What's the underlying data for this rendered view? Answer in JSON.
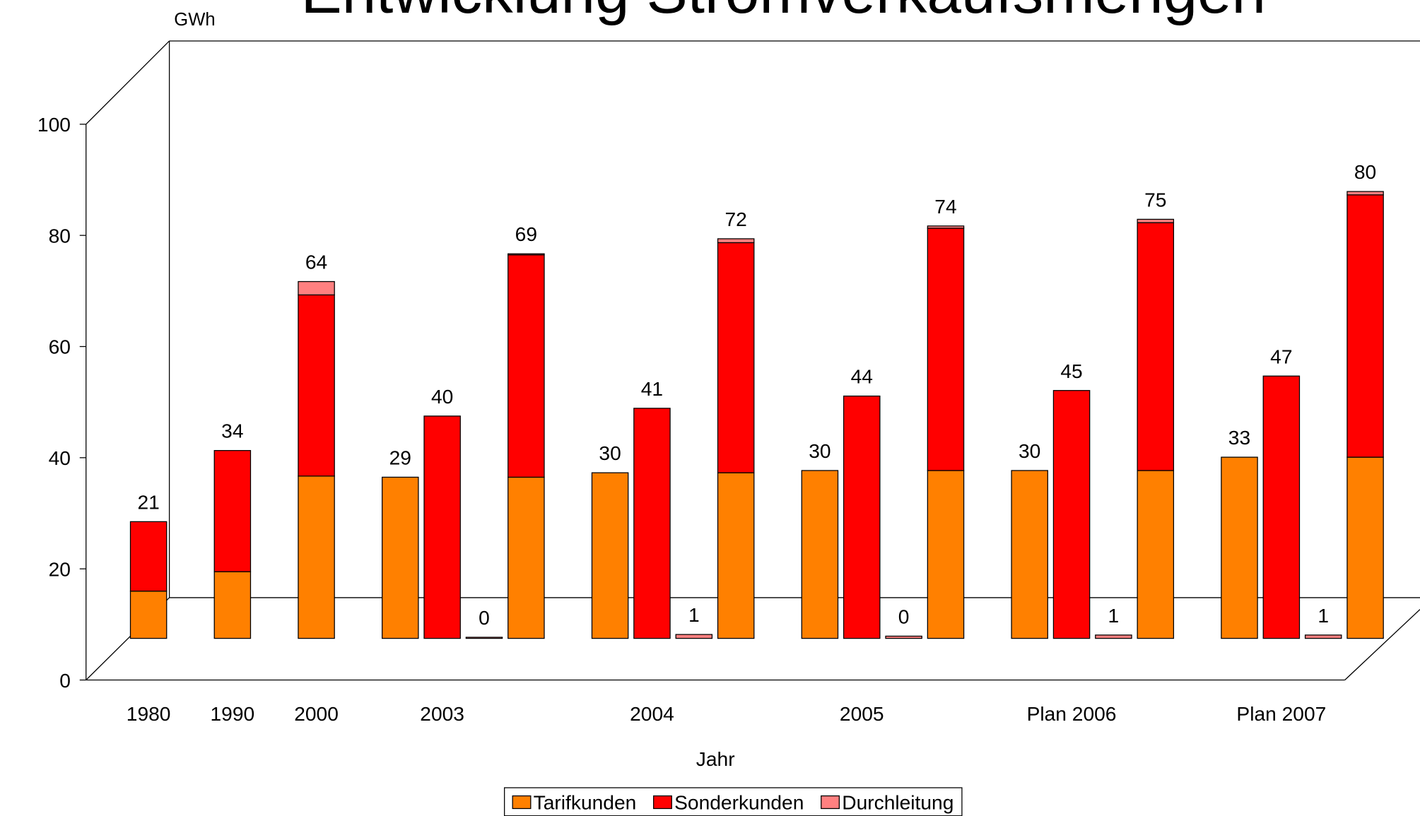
{
  "chart_data": {
    "type": "stacked-bar-breakdown",
    "title": "Entwicklung Stromverkaufsmengen",
    "y_label": "GWh",
    "x_label": "Jahr",
    "categories": [
      "1980",
      "1990",
      "2000",
      "2003",
      "2004",
      "2005",
      "Plan 2006",
      "Plan 2007"
    ],
    "breakdown": [
      false,
      false,
      false,
      true,
      true,
      true,
      true,
      true
    ],
    "series": [
      {
        "name": "Tarifkunden",
        "color": "#ff8000",
        "values": [
          8.5,
          12,
          29.2,
          29,
          29.8,
          30.2,
          30.2,
          32.6
        ],
        "value_labels": [
          null,
          null,
          null,
          "29",
          "30",
          "30",
          "30",
          "33"
        ]
      },
      {
        "name": "Sonderkunden",
        "color": "#ff0000",
        "values": [
          12.5,
          21.8,
          32.6,
          40,
          41.4,
          43.6,
          44.6,
          47.2
        ],
        "value_labels": [
          null,
          null,
          null,
          "40",
          "41",
          "44",
          "45",
          "47"
        ]
      },
      {
        "name": "Durchleitung",
        "color": "#ff8080",
        "values": [
          0,
          0,
          2.4,
          0.2,
          0.7,
          0.4,
          0.6,
          0.6
        ],
        "value_labels": [
          null,
          null,
          null,
          "0",
          "1",
          "0",
          "1",
          "1"
        ]
      }
    ],
    "totals": [
      21,
      34,
      64,
      69,
      72,
      74,
      75,
      80
    ],
    "ylim": [
      0,
      100
    ],
    "yticks": [
      0,
      20,
      40,
      60,
      80,
      100
    ],
    "legend": "bottom"
  }
}
